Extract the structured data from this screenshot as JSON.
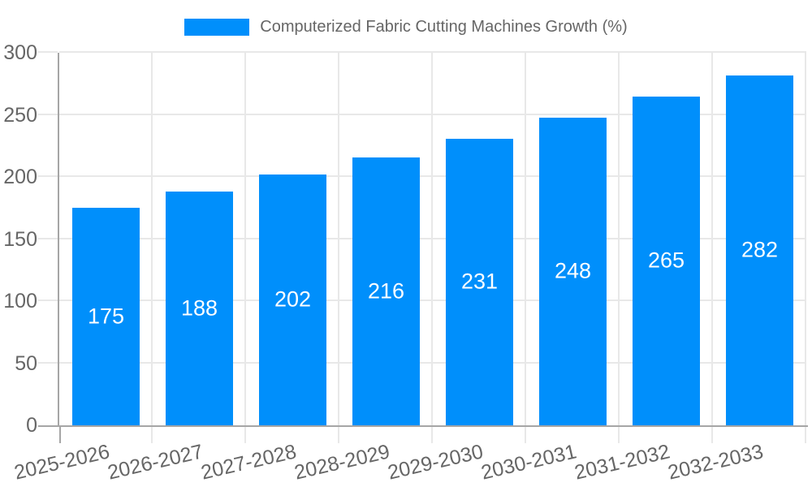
{
  "chart_data": {
    "type": "bar",
    "title": "Computerized Fabric Cutting Machines Growth (%)",
    "categories": [
      "2025-2026",
      "2026-2027",
      "2027-2028",
      "2028-2029",
      "2029-2030",
      "2030-2031",
      "2031-2032",
      "2032-2033"
    ],
    "values": [
      175,
      188,
      202,
      216,
      231,
      248,
      265,
      282
    ],
    "series_name": "Computerized Fabric Cutting Machines Growth (%)",
    "xlabel": "",
    "ylabel": "",
    "ylim": [
      0,
      300
    ],
    "yticks": [
      0,
      50,
      100,
      150,
      200,
      250,
      300
    ],
    "grid": "on",
    "legend_position": "top",
    "bar_labels_shown": true,
    "colors": {
      "bar": "#008FFB",
      "bar_value_text": "#ffffff",
      "tick_text": "#666666",
      "legend_text": "#666666",
      "gridline": "#e8e8e8",
      "axis_line": "#a6a6a6",
      "background": "#ffffff"
    }
  }
}
